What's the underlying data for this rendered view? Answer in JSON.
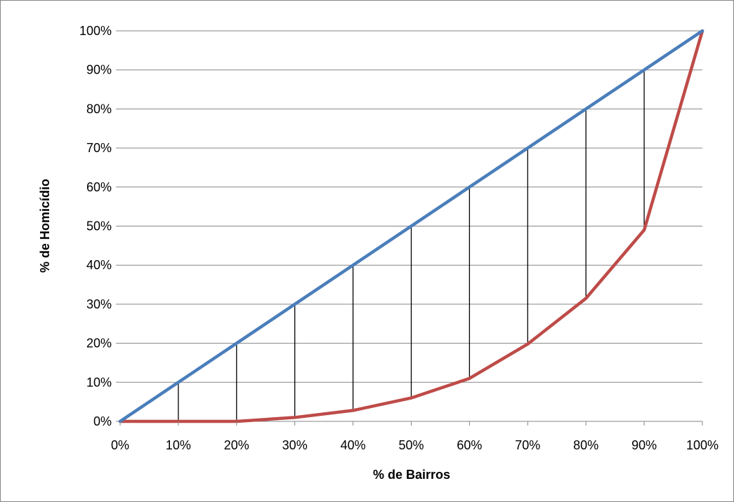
{
  "chart_data": {
    "type": "line",
    "xlabel": "% de Bairros",
    "ylabel": "% de Homicídio",
    "x": [
      0,
      10,
      20,
      30,
      40,
      50,
      60,
      70,
      80,
      90,
      100
    ],
    "x_tick_labels": [
      "0%",
      "10%",
      "20%",
      "30%",
      "40%",
      "50%",
      "60%",
      "70%",
      "80%",
      "90%",
      "100%"
    ],
    "y_tick_labels": [
      "0%",
      "10%",
      "20%",
      "30%",
      "40%",
      "50%",
      "60%",
      "70%",
      "80%",
      "90%",
      "100%"
    ],
    "xlim": [
      0,
      100
    ],
    "ylim": [
      0,
      100
    ],
    "grid": "horizontal",
    "legend": "none",
    "series": [
      {
        "color": "#4a7ebb",
        "values": [
          0,
          10,
          20,
          30,
          40,
          50,
          60,
          70,
          80,
          90,
          100
        ]
      },
      {
        "color": "#be4b48",
        "values": [
          0,
          0,
          0,
          1,
          2.8,
          6,
          11,
          19.8,
          31.5,
          49,
          100
        ]
      }
    ],
    "gap_lines": {
      "color": "#000000",
      "x": [
        10,
        20,
        30,
        40,
        50,
        60,
        70,
        80,
        90
      ]
    }
  }
}
